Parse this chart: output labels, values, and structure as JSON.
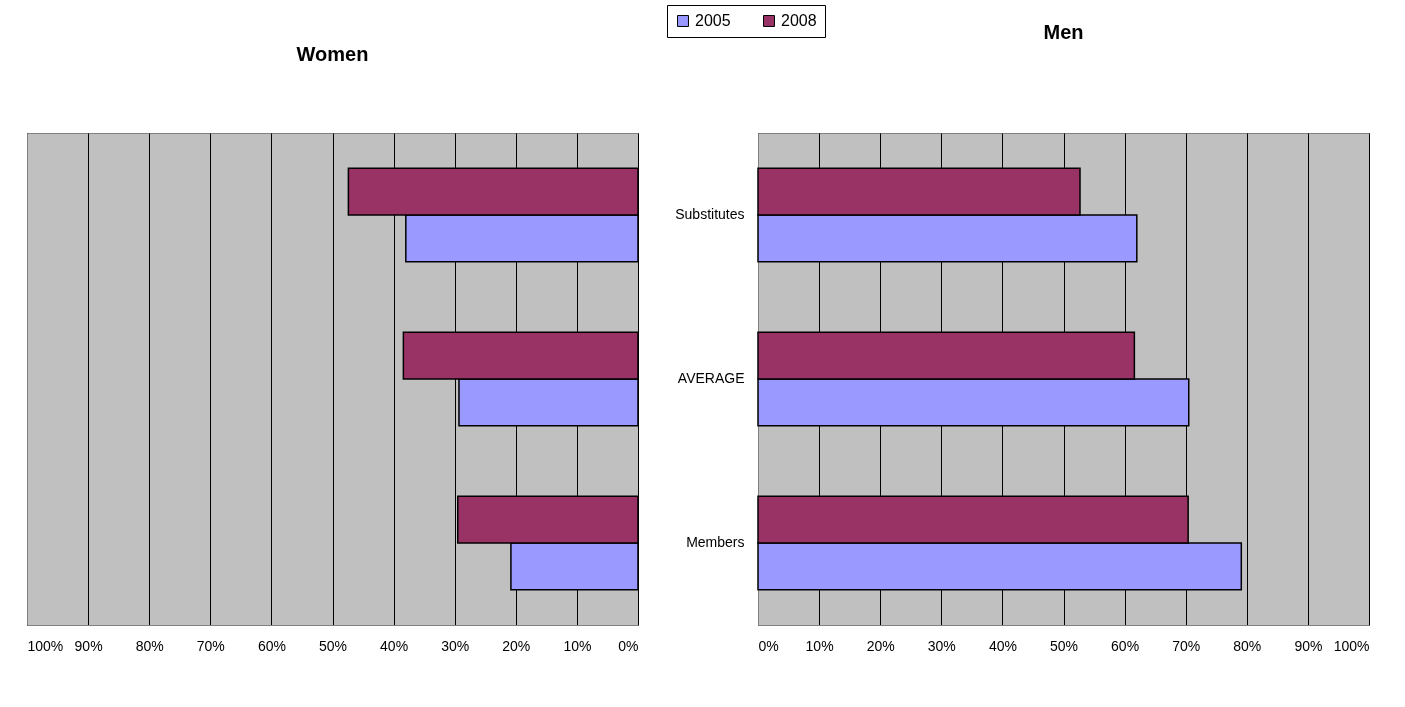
{
  "chart_data": [
    {
      "type": "bar",
      "orientation": "horizontal",
      "title": "Women",
      "categories": [
        null,
        null,
        null
      ],
      "series": [
        {
          "name": "2005",
          "color": "#9999ff",
          "values": [
            38.0,
            29.3,
            20.8
          ]
        },
        {
          "name": "2008",
          "color": "#993366",
          "values": [
            47.4,
            38.4,
            29.5
          ]
        }
      ],
      "xlim": [
        100,
        0
      ],
      "xticks": [
        {
          "value": 100,
          "label": "100%"
        },
        {
          "value": 90,
          "label": "90%"
        },
        {
          "value": 80,
          "label": "80%"
        },
        {
          "value": 70,
          "label": "70%"
        },
        {
          "value": 60,
          "label": "60%"
        },
        {
          "value": 50,
          "label": "50%"
        },
        {
          "value": 40,
          "label": "40%"
        },
        {
          "value": 30,
          "label": "30%"
        },
        {
          "value": 20,
          "label": "20%"
        },
        {
          "value": 10,
          "label": "10%"
        },
        {
          "value": 0,
          "label": "0%"
        }
      ],
      "grid": "x",
      "tick_labels": "x",
      "legend": "top right"
    },
    {
      "type": "bar",
      "orientation": "horizontal",
      "title": "Men",
      "categories": [
        "Substitutes",
        "AVERAGE",
        "Members"
      ],
      "series": [
        {
          "name": "2005",
          "color": "#9999ff",
          "values": [
            62.0,
            70.5,
            79.1
          ]
        },
        {
          "name": "2008",
          "color": "#993366",
          "values": [
            52.7,
            61.6,
            70.4
          ]
        }
      ],
      "xlim": [
        0,
        100
      ],
      "xticks": [
        {
          "value": 0,
          "label": "0%"
        },
        {
          "value": 10,
          "label": "10%"
        },
        {
          "value": 20,
          "label": "20%"
        },
        {
          "value": 30,
          "label": "30%"
        },
        {
          "value": 40,
          "label": "40%"
        },
        {
          "value": 50,
          "label": "50%"
        },
        {
          "value": 60,
          "label": "60%"
        },
        {
          "value": 70,
          "label": "70%"
        },
        {
          "value": 80,
          "label": "80%"
        },
        {
          "value": 90,
          "label": "90%"
        },
        {
          "value": 100,
          "label": "100%"
        }
      ],
      "grid": "x",
      "legend": "top left"
    }
  ]
}
